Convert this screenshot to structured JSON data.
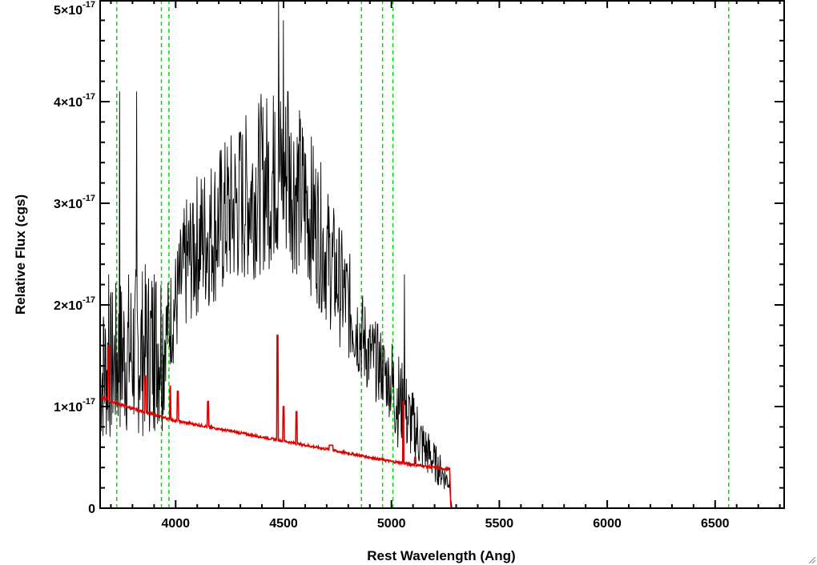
{
  "chart_data": {
    "type": "line",
    "xlabel": "Rest Wavelength (Ang)",
    "ylabel": "Relative Flux (cgs)",
    "xlim": [
      3650,
      6820
    ],
    "ylim": [
      0,
      5e-17
    ],
    "x_ticks": [
      4000,
      4500,
      5000,
      5500,
      6000,
      6500
    ],
    "x_tick_labels": [
      "4000",
      "4500",
      "5000",
      "5500",
      "6000",
      "6500"
    ],
    "y_ticks": [
      0,
      1e-17,
      2e-17,
      3e-17,
      4e-17,
      5e-17
    ],
    "y_tick_labels": [
      {
        "mantissa": "0",
        "times": "",
        "exponent": ""
      },
      {
        "mantissa": "1",
        "times": "×10",
        "exponent": "-17"
      },
      {
        "mantissa": "2",
        "times": "×10",
        "exponent": "-17"
      },
      {
        "mantissa": "3",
        "times": "×10",
        "exponent": "-17"
      },
      {
        "mantissa": "4",
        "times": "×10",
        "exponent": "-17"
      },
      {
        "mantissa": "5",
        "times": "×10",
        "exponent": "-17"
      }
    ],
    "grid": false,
    "reference_lines": [
      {
        "orientation": "vertical",
        "style": "dashed",
        "color": "#00dd00",
        "x": 3727
      },
      {
        "orientation": "vertical",
        "style": "dashed",
        "color": "#00dd00",
        "x": 3934
      },
      {
        "orientation": "vertical",
        "style": "dashed",
        "color": "#00dd00",
        "x": 3969
      },
      {
        "orientation": "vertical",
        "style": "dashed",
        "color": "#00dd00",
        "x": 4861
      },
      {
        "orientation": "vertical",
        "style": "dashed",
        "color": "#00dd00",
        "x": 4959
      },
      {
        "orientation": "vertical",
        "style": "dashed",
        "color": "#00dd00",
        "x": 5007
      },
      {
        "orientation": "vertical",
        "style": "dashed",
        "color": "#00dd00",
        "x": 6563
      }
    ],
    "series": [
      {
        "color": "#000000",
        "style": "noisy-line",
        "x": [
          3650,
          3700,
          3750,
          3800,
          3850,
          3900,
          3950,
          4000,
          4050,
          4100,
          4150,
          4200,
          4250,
          4300,
          4350,
          4400,
          4450,
          4500,
          4550,
          4600,
          4650,
          4700,
          4750,
          4800,
          4850,
          4900,
          4950,
          5000,
          5050,
          5100,
          5150,
          5200,
          5250,
          5270,
          5280,
          5400,
          5600,
          5800,
          6000,
          6200,
          6400,
          6600,
          6820
        ],
        "y": [
          1.3e-17,
          1.4e-17,
          1.5e-17,
          1.55e-17,
          1.55e-17,
          1.6e-17,
          1.7e-17,
          2e-17,
          2.4e-17,
          2.6e-17,
          2.7e-17,
          2.8e-17,
          2.9e-17,
          3e-17,
          3.1e-17,
          3.2e-17,
          3.25e-17,
          3.3e-17,
          3.2e-17,
          3e-17,
          2.8e-17,
          2.5e-17,
          2.25e-17,
          2e-17,
          1.75e-17,
          1.5e-17,
          1.4e-17,
          1.2e-17,
          1e-17,
          8e-18,
          6e-18,
          4.5e-18,
          3e-18,
          2.5e-18,
          0,
          0,
          0,
          0,
          0,
          0,
          0,
          0,
          0
        ],
        "spikes": [
          {
            "x": 3668,
            "y": 1.8e-17
          },
          {
            "x": 3690,
            "y": 2.3e-17
          },
          {
            "x": 3740,
            "y": 4.1e-17
          },
          {
            "x": 3820,
            "y": 4.1e-17
          },
          {
            "x": 3900,
            "y": 2.3e-17
          },
          {
            "x": 4080,
            "y": 3e-17
          },
          {
            "x": 4300,
            "y": 3.7e-17
          },
          {
            "x": 4460,
            "y": 3.9e-17
          },
          {
            "x": 4478,
            "y": 5e-17
          },
          {
            "x": 4500,
            "y": 4.8e-17
          },
          {
            "x": 4520,
            "y": 4.1e-17
          },
          {
            "x": 5060,
            "y": 2.3e-17
          },
          {
            "x": 5120,
            "y": 1e-17
          }
        ]
      },
      {
        "color": "#dd0000",
        "style": "line",
        "x": [
          3650,
          3700,
          3800,
          3900,
          4000,
          4100,
          4200,
          4300,
          4400,
          4500,
          4600,
          4700,
          4800,
          4900,
          5000,
          5100,
          5200,
          5270,
          5275,
          5400,
          5600,
          5800,
          6000,
          6200,
          6400,
          6600,
          6820
        ],
        "y": [
          1.1e-17,
          1.05e-17,
          9.8e-18,
          9.2e-18,
          8.6e-18,
          8.2e-18,
          7.8e-18,
          7.4e-18,
          7e-18,
          6.6e-18,
          6.2e-18,
          5.8e-18,
          5.4e-18,
          5e-18,
          4.6e-18,
          4.3e-18,
          4e-18,
          3.8e-18,
          0,
          0,
          0,
          0,
          0,
          0,
          0,
          0,
          0
        ],
        "peaks": [
          {
            "x": 3690,
            "y": 1.6e-17
          },
          {
            "x": 3860,
            "y": 1.3e-17
          },
          {
            "x": 3975,
            "y": 1.2e-17
          },
          {
            "x": 4010,
            "y": 1.15e-17
          },
          {
            "x": 4150,
            "y": 1.05e-17
          },
          {
            "x": 4472,
            "y": 1.7e-17
          },
          {
            "x": 4500,
            "y": 1e-17
          },
          {
            "x": 4560,
            "y": 9.5e-18
          },
          {
            "x": 4720,
            "y": 6.2e-18
          },
          {
            "x": 5055,
            "y": 1.05e-17
          },
          {
            "x": 5110,
            "y": 5e-18
          }
        ]
      }
    ]
  }
}
